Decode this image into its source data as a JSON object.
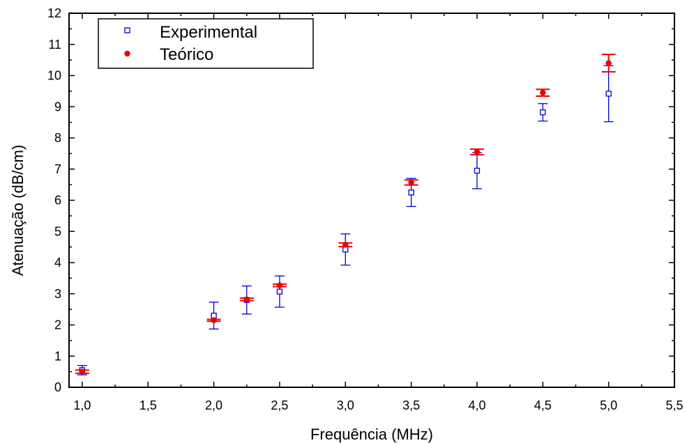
{
  "chart_data": {
    "type": "scatter",
    "title": "",
    "xlabel": "Frequência (MHz)",
    "ylabel": "Atenuação (dB/cm)",
    "xlim": [
      0.9,
      5.5
    ],
    "ylim": [
      0,
      12
    ],
    "x_ticks": [
      1.0,
      1.5,
      2.0,
      2.5,
      3.0,
      3.5,
      4.0,
      4.5,
      5.0,
      5.5
    ],
    "x_tick_labels": [
      "1,0",
      "1,5",
      "2,0",
      "2,5",
      "3,0",
      "3,5",
      "4,0",
      "4,5",
      "5,0",
      "5,5"
    ],
    "y_ticks": [
      0,
      1,
      2,
      3,
      4,
      5,
      6,
      7,
      8,
      9,
      10,
      11,
      12
    ],
    "y_tick_labels": [
      "0",
      "1",
      "2",
      "3",
      "4",
      "5",
      "6",
      "7",
      "8",
      "9",
      "10",
      "11",
      "12"
    ],
    "grid": false,
    "legend_position": "top-left",
    "series": [
      {
        "name": "Experimental",
        "marker": "open-square",
        "color": "#0000cc",
        "points": [
          {
            "x": 1.0,
            "y": 0.55,
            "err": 0.15
          },
          {
            "x": 2.0,
            "y": 2.3,
            "err": 0.43
          },
          {
            "x": 2.25,
            "y": 2.8,
            "err": 0.45
          },
          {
            "x": 2.5,
            "y": 3.07,
            "err": 0.5
          },
          {
            "x": 3.0,
            "y": 4.42,
            "err": 0.5
          },
          {
            "x": 3.5,
            "y": 6.25,
            "err": 0.45
          },
          {
            "x": 4.0,
            "y": 6.95,
            "err": 0.58
          },
          {
            "x": 4.5,
            "y": 8.82,
            "err": 0.28
          },
          {
            "x": 5.0,
            "y": 9.42,
            "err": 0.9
          }
        ]
      },
      {
        "name": "Teórico",
        "marker": "filled-circle",
        "color": "#ee0000",
        "points": [
          {
            "x": 1.0,
            "y": 0.5,
            "err": 0.05
          },
          {
            "x": 2.0,
            "y": 2.15,
            "err": 0.03
          },
          {
            "x": 2.25,
            "y": 2.82,
            "err": 0.04
          },
          {
            "x": 2.5,
            "y": 3.27,
            "err": 0.04
          },
          {
            "x": 3.0,
            "y": 4.57,
            "err": 0.06
          },
          {
            "x": 3.5,
            "y": 6.57,
            "err": 0.08
          },
          {
            "x": 4.0,
            "y": 7.55,
            "err": 0.09
          },
          {
            "x": 4.5,
            "y": 9.45,
            "err": 0.11
          },
          {
            "x": 5.0,
            "y": 10.4,
            "err": 0.28
          }
        ]
      }
    ]
  }
}
